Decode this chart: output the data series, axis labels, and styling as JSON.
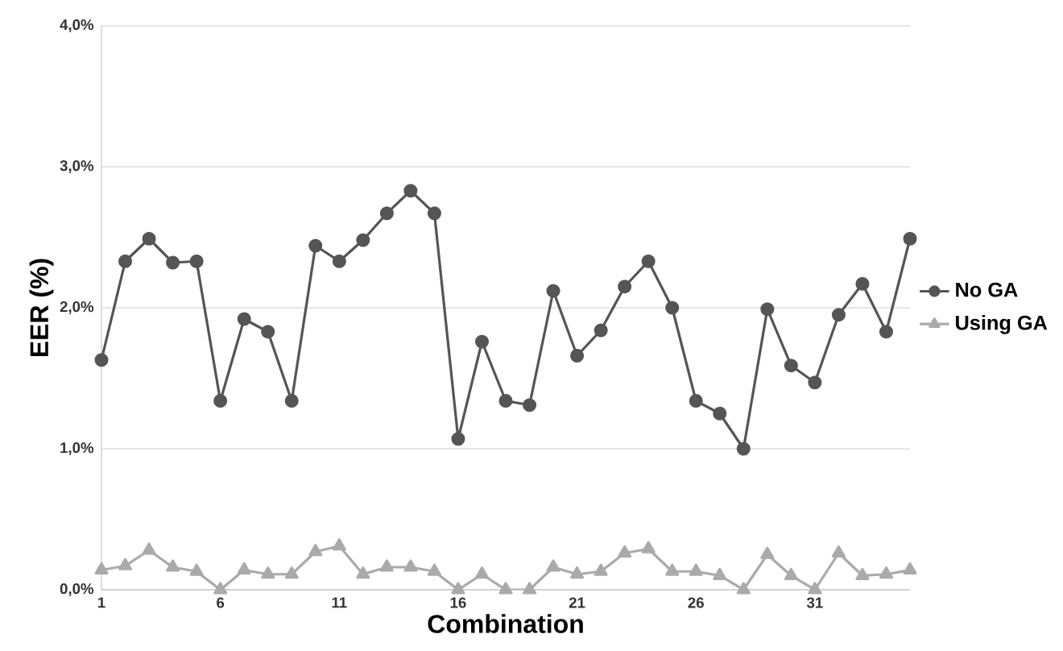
{
  "chart_data": {
    "type": "line",
    "xlabel": "Combination",
    "ylabel": "EER (%)",
    "categories": [
      "1",
      null,
      null,
      null,
      null,
      "6",
      null,
      null,
      null,
      null,
      "11",
      null,
      null,
      null,
      null,
      "16",
      null,
      null,
      null,
      null,
      "21",
      null,
      null,
      null,
      null,
      "26",
      null,
      null,
      null,
      null,
      "31",
      null,
      null,
      null,
      null
    ],
    "series": [
      {
        "name": "No GA",
        "color": "#555555",
        "marker": "circle",
        "values": [
          1.63,
          2.33,
          2.49,
          2.32,
          2.33,
          1.34,
          1.92,
          1.83,
          1.34,
          2.44,
          2.33,
          2.48,
          2.67,
          2.83,
          2.67,
          1.07,
          1.76,
          1.34,
          1.31,
          2.12,
          1.66,
          1.84,
          2.15,
          2.33,
          2.0,
          1.34,
          1.25,
          1.0,
          1.99,
          1.59,
          1.47,
          1.95,
          2.17,
          1.83,
          2.49
        ]
      },
      {
        "name": "Using GA",
        "color": "#aaaaaa",
        "marker": "triangle",
        "values": [
          0.14,
          0.17,
          0.28,
          0.16,
          0.13,
          0.0,
          0.14,
          0.11,
          0.11,
          0.27,
          0.31,
          0.11,
          0.16,
          0.16,
          0.13,
          0.0,
          0.11,
          0.0,
          0.0,
          0.16,
          0.11,
          0.13,
          0.26,
          0.29,
          0.13,
          0.13,
          0.1,
          0.0,
          0.25,
          0.1,
          0.0,
          0.26,
          0.1,
          0.11,
          0.14
        ]
      }
    ],
    "ylim": [
      0,
      4
    ],
    "yticks": [
      {
        "value": 0,
        "label": "0,0%"
      },
      {
        "value": 1,
        "label": "1,0%"
      },
      {
        "value": 2,
        "label": "2,0%"
      },
      {
        "value": 3,
        "label": "3,0%"
      },
      {
        "value": 4,
        "label": "4,0%"
      }
    ],
    "grid": "y",
    "legend": "right"
  }
}
